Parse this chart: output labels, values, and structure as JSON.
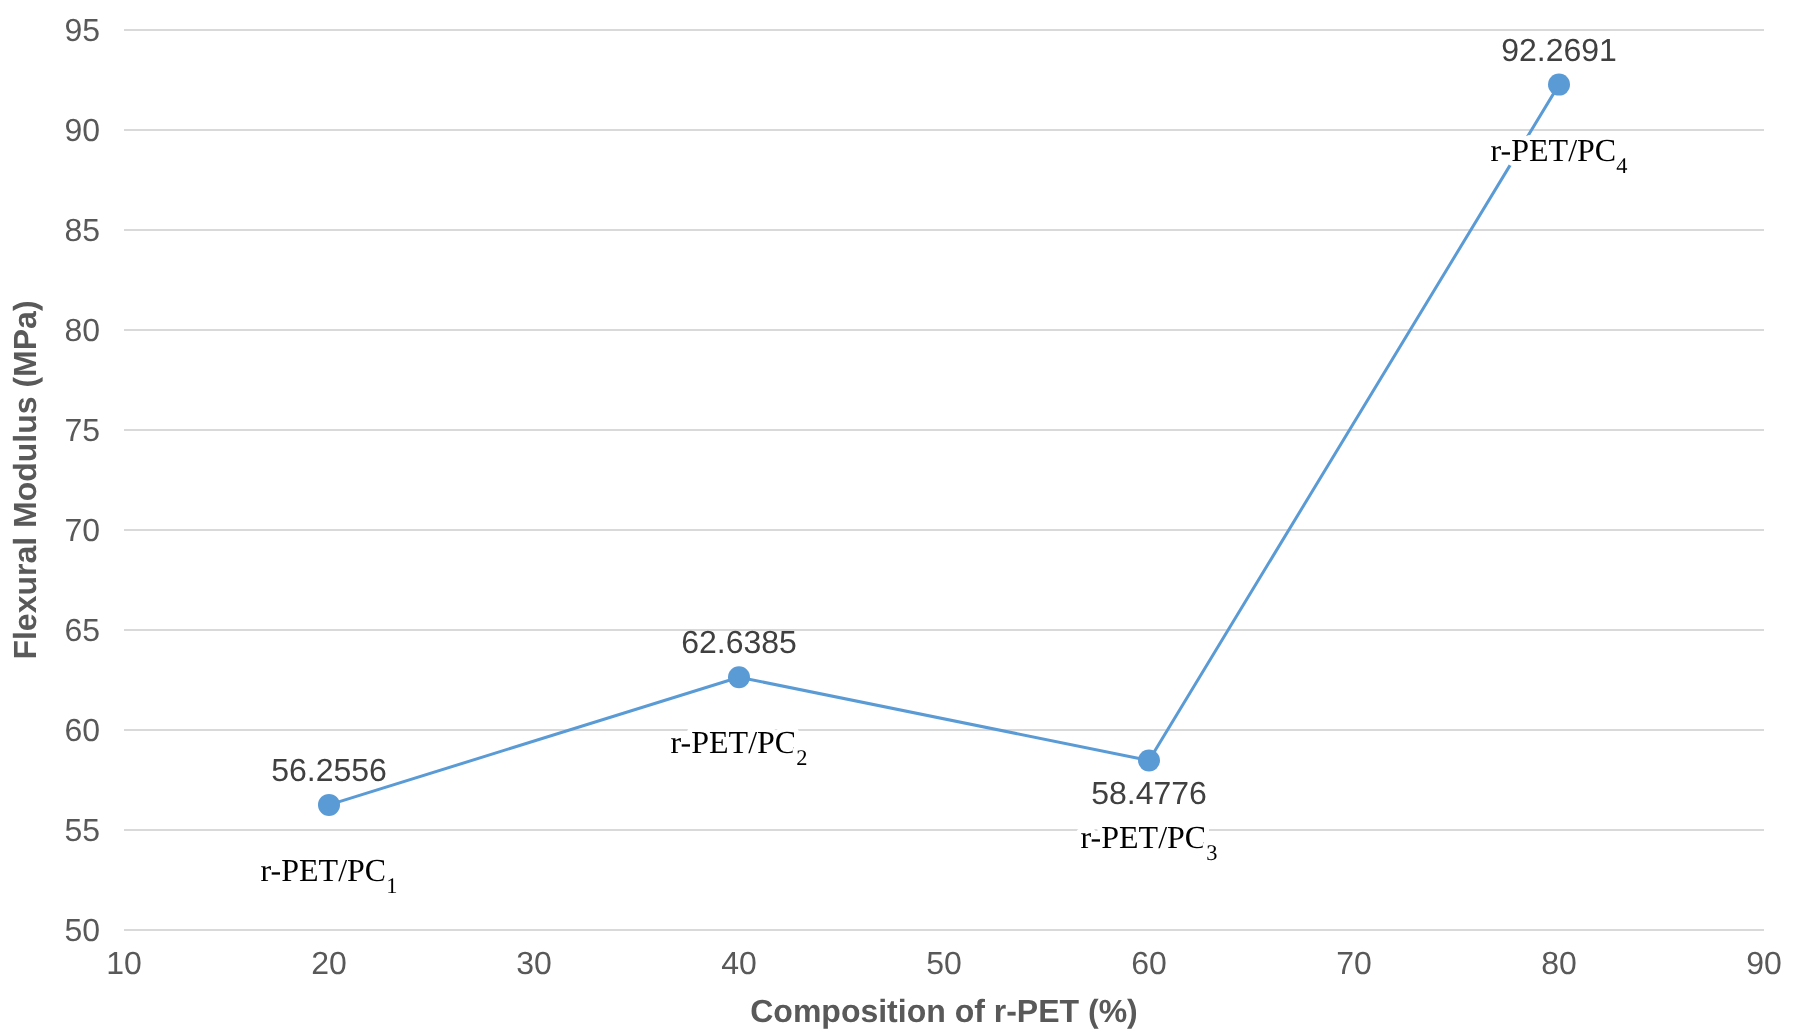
{
  "chart_data": {
    "type": "line",
    "xlabel": "Composition of r-PET (%)",
    "ylabel": "Flexural Modulus (MPa)",
    "x": [
      20,
      40,
      60,
      80
    ],
    "series": [
      {
        "color": "#5b9bd5",
        "values": [
          56.2556,
          62.6385,
          58.4776,
          92.2691
        ]
      }
    ],
    "data_labels": true,
    "marker": "circle",
    "grid": "y",
    "xlim": [
      10,
      90
    ],
    "xticks": [
      10,
      20,
      30,
      40,
      50,
      60,
      70,
      80,
      90
    ],
    "ylim": [
      50,
      95
    ],
    "yticks": [
      50,
      55,
      60,
      65,
      70,
      75,
      80,
      85,
      90,
      95
    ],
    "annotations": [
      {
        "text": "r-PET/PC$_{1}$",
        "x": 20,
        "y": 56.2556
      },
      {
        "text": "r-PET/PC$_{2}$",
        "x": 40,
        "y": 62.6385
      },
      {
        "text": "r-PET/PC$_{3}$",
        "x": 60,
        "y": 58.4776
      },
      {
        "text": "r-PET/PC$_{4}$",
        "x": 80,
        "y": 92.2691
      }
    ]
  }
}
